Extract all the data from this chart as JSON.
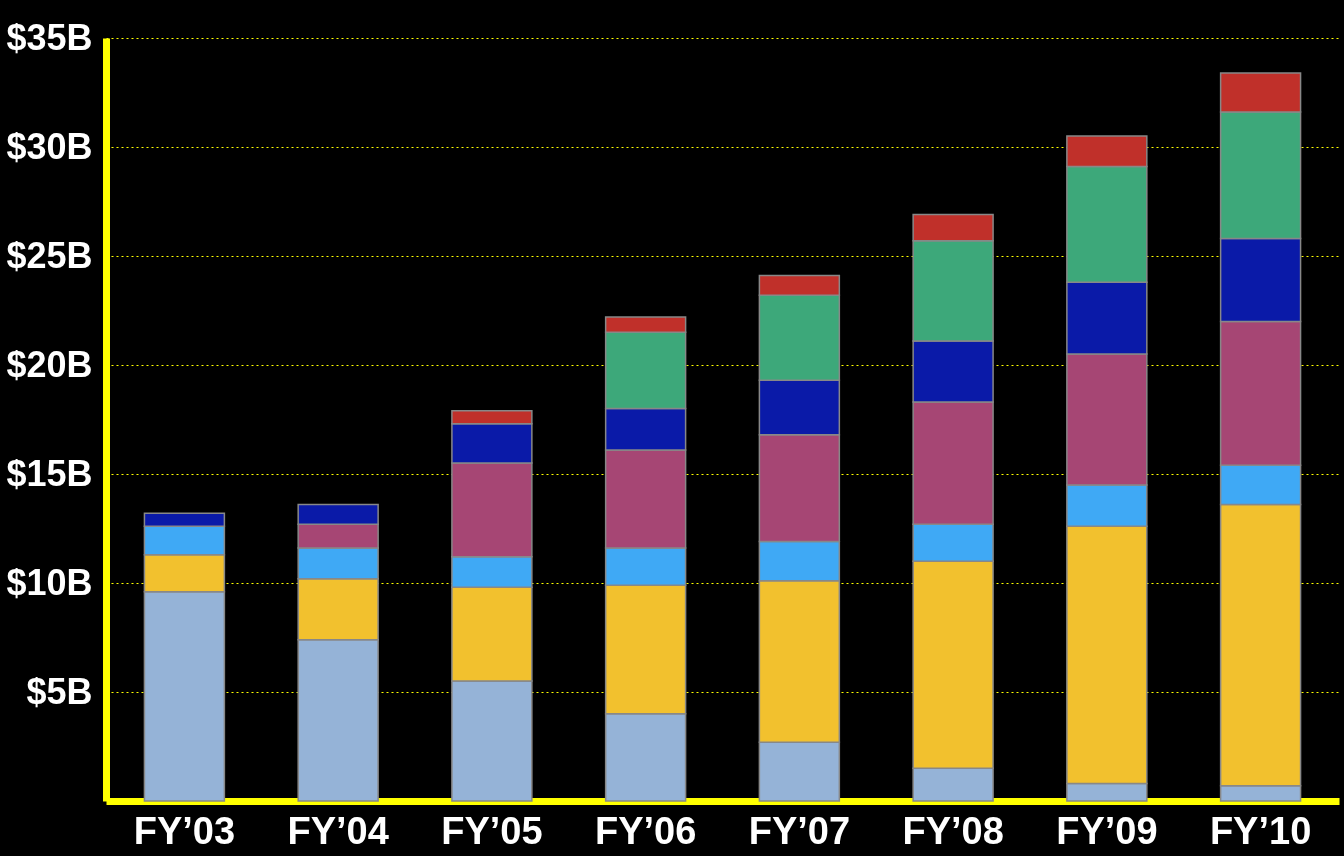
{
  "chart_data": {
    "type": "bar",
    "stacked": true,
    "categories": [
      "FY’03",
      "FY’04",
      "FY’05",
      "FY’06",
      "FY’07",
      "FY’08",
      "FY’09",
      "FY’10"
    ],
    "series": [
      {
        "color": "#95b3d7",
        "values": [
          9.6,
          7.4,
          5.5,
          4.0,
          2.7,
          1.5,
          0.8,
          0.7
        ]
      },
      {
        "color": "#f2c12e",
        "values": [
          1.7,
          2.8,
          4.3,
          5.9,
          7.4,
          9.5,
          11.8,
          12.9
        ]
      },
      {
        "color": "#3fa9f5",
        "values": [
          1.3,
          1.4,
          1.4,
          1.7,
          1.8,
          1.7,
          1.9,
          1.8
        ]
      },
      {
        "color": "#a64674",
        "values": [
          null,
          1.1,
          4.3,
          4.5,
          4.9,
          5.6,
          6.0,
          6.6
        ]
      },
      {
        "color": "#0a1aa8",
        "values": [
          0.6,
          0.9,
          1.8,
          1.9,
          2.5,
          2.8,
          3.3,
          3.8
        ]
      },
      {
        "color": "#3da87a",
        "values": [
          null,
          null,
          null,
          3.5,
          3.9,
          4.6,
          5.3,
          5.8
        ]
      },
      {
        "color": "#c0302a",
        "values": [
          null,
          null,
          0.6,
          0.7,
          0.9,
          1.2,
          1.4,
          1.8
        ]
      }
    ],
    "ylim": [
      0,
      35
    ],
    "yticks": [
      {
        "value": 5,
        "label": "$5B"
      },
      {
        "value": 10,
        "label": "$10B"
      },
      {
        "value": 15,
        "label": "$15B"
      },
      {
        "value": 20,
        "label": "$20B"
      },
      {
        "value": 25,
        "label": "$25B"
      },
      {
        "value": 30,
        "label": "$30B"
      },
      {
        "value": 35,
        "label": "$35B"
      }
    ],
    "grid": "y"
  }
}
